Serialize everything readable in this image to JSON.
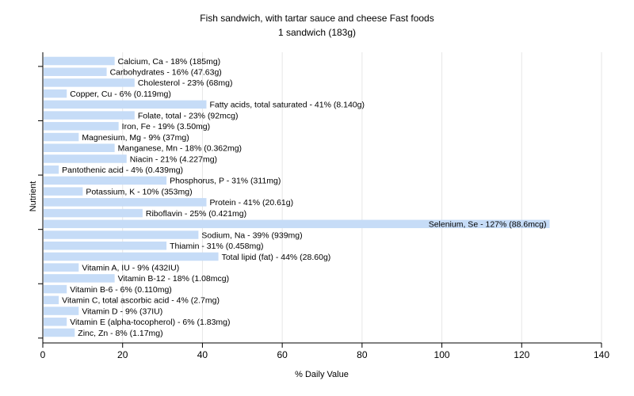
{
  "chart_data": {
    "type": "bar",
    "orientation": "horizontal",
    "title": "Fish sandwich, with tartar sauce and cheese Fast foods",
    "subtitle": "1 sandwich (183g)",
    "xlabel": "% Daily Value",
    "ylabel": "Nutrient",
    "xlim": [
      0,
      140
    ],
    "xticks": [
      0,
      20,
      40,
      60,
      80,
      100,
      120,
      140
    ],
    "grid": true,
    "bar_color": "#c6dcf7",
    "categories": [
      "Calcium, Ca",
      "Carbohydrates",
      "Cholesterol",
      "Copper, Cu",
      "Fatty acids, total saturated",
      "Folate, total",
      "Iron, Fe",
      "Magnesium, Mg",
      "Manganese, Mn",
      "Niacin",
      "Pantothenic acid",
      "Phosphorus, P",
      "Potassium, K",
      "Protein",
      "Riboflavin",
      "Selenium, Se",
      "Sodium, Na",
      "Thiamin",
      "Total lipid (fat)",
      "Vitamin A, IU",
      "Vitamin B-12",
      "Vitamin B-6",
      "Vitamin C, total ascorbic acid",
      "Vitamin D",
      "Vitamin E (alpha-tocopherol)",
      "Zinc, Zn"
    ],
    "values": [
      18,
      16,
      23,
      6,
      41,
      23,
      19,
      9,
      18,
      21,
      4,
      31,
      10,
      41,
      25,
      127,
      39,
      31,
      44,
      9,
      18,
      6,
      4,
      9,
      6,
      8
    ],
    "labels": [
      "Calcium, Ca - 18% (185mg)",
      "Carbohydrates - 16% (47.63g)",
      "Cholesterol - 23% (68mg)",
      "Copper, Cu - 6% (0.119mg)",
      "Fatty acids, total saturated - 41% (8.140g)",
      "Folate, total - 23% (92mcg)",
      "Iron, Fe - 19% (3.50mg)",
      "Magnesium, Mg - 9% (37mg)",
      "Manganese, Mn - 18% (0.362mg)",
      "Niacin - 21% (4.227mg)",
      "Pantothenic acid - 4% (0.439mg)",
      "Phosphorus, P - 31% (311mg)",
      "Potassium, K - 10% (353mg)",
      "Protein - 41% (20.61g)",
      "Riboflavin - 25% (0.421mg)",
      "Selenium, Se - 127% (88.6mcg)",
      "Sodium, Na - 39% (939mg)",
      "Thiamin - 31% (0.458mg)",
      "Total lipid (fat) - 44% (28.60g)",
      "Vitamin A, IU - 9% (432IU)",
      "Vitamin B-12 - 18% (1.08mcg)",
      "Vitamin B-6 - 6% (0.110mg)",
      "Vitamin C, total ascorbic acid - 4% (2.7mg)",
      "Vitamin D - 9% (37IU)",
      "Vitamin E (alpha-tocopherol) - 6% (1.83mg)",
      "Zinc, Zn - 8% (1.17mg)"
    ]
  }
}
